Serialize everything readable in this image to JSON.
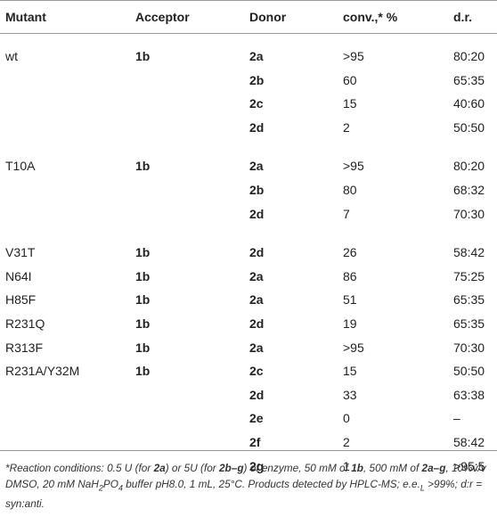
{
  "headers": {
    "mutant": "Mutant",
    "acceptor": "Acceptor",
    "donor": "Donor",
    "conv": "conv.,* %",
    "dr": "d.r."
  },
  "rows": [
    {
      "mutant": "wt",
      "acceptor": "1b",
      "donor": "2a",
      "conv": ">95",
      "dr": "80:20"
    },
    {
      "mutant": "",
      "acceptor": "",
      "donor": "2b",
      "conv": "60",
      "dr": "65:35"
    },
    {
      "mutant": "",
      "acceptor": "",
      "donor": "2c",
      "conv": "15",
      "dr": "40:60"
    },
    {
      "mutant": "",
      "acceptor": "",
      "donor": "2d",
      "conv": "2",
      "dr": "50:50"
    },
    {
      "mutant": "T10A",
      "acceptor": "1b",
      "donor": "2a",
      "conv": ">95",
      "dr": "80:20"
    },
    {
      "mutant": "",
      "acceptor": "",
      "donor": "2b",
      "conv": "80",
      "dr": "68:32"
    },
    {
      "mutant": "",
      "acceptor": "",
      "donor": "2d",
      "conv": "7",
      "dr": "70:30"
    },
    {
      "mutant": "V31T",
      "acceptor": "1b",
      "donor": "2d",
      "conv": "26",
      "dr": "58:42"
    },
    {
      "mutant": "N64I",
      "acceptor": "1b",
      "donor": "2a",
      "conv": "86",
      "dr": "75:25"
    },
    {
      "mutant": "H85F",
      "acceptor": "1b",
      "donor": "2a",
      "conv": "51",
      "dr": "65:35"
    },
    {
      "mutant": "R231Q",
      "acceptor": "1b",
      "donor": "2d",
      "conv": "19",
      "dr": "65:35"
    },
    {
      "mutant": "R313F",
      "acceptor": "1b",
      "donor": "2a",
      "conv": ">95",
      "dr": "70:30"
    },
    {
      "mutant": "R231A/Y32M",
      "acceptor": "1b",
      "donor": "2c",
      "conv": "15",
      "dr": "50:50"
    },
    {
      "mutant": "",
      "acceptor": "",
      "donor": "2d",
      "conv": "33",
      "dr": "63:38"
    },
    {
      "mutant": "",
      "acceptor": "",
      "donor": "2e",
      "conv": "0",
      "dr": "–"
    },
    {
      "mutant": "",
      "acceptor": "",
      "donor": "2f",
      "conv": "2",
      "dr": "58:42"
    },
    {
      "mutant": "",
      "acceptor": "",
      "donor": "2g",
      "conv": "1",
      "dr": ">95:5"
    }
  ],
  "footnote": {
    "s1": "*Reaction conditions: 0.5 U (for ",
    "b1": "2a",
    "s2": ") or 5U (for ",
    "b2": "2b–g",
    "s3": ") of enzyme, 50 mM of ",
    "b3": "1b",
    "s4": ", 500 mM of ",
    "b4": "2a–g",
    "s5": ", 10%v/v DMSO, 20 mM NaH",
    "sub1": "2",
    "s6": "PO",
    "sub2": "4",
    "s7": " buffer pH8.0, 1 mL, 25°C. Products detected by HPLC-MS; e.e.",
    "sub3": "L",
    "s8": " >99%; d:r = syn:anti."
  }
}
